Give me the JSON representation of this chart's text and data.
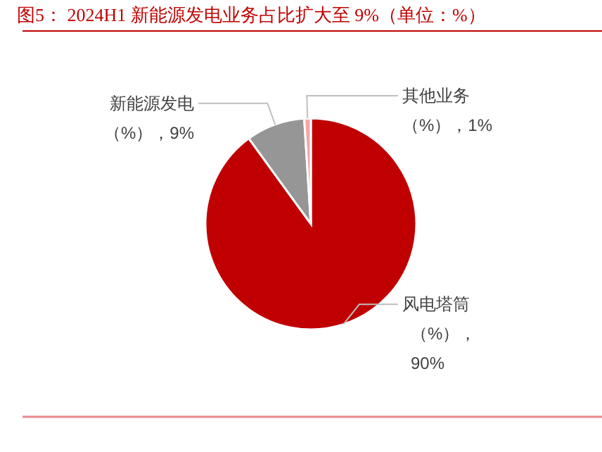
{
  "chart_data": {
    "type": "pie",
    "title": "图5：  2024H1 新能源发电业务占比扩大至 9%（单位：%）",
    "categories": [
      "风电塔筒",
      "新能源发电",
      "其他业务"
    ],
    "values": [
      90,
      9,
      1
    ],
    "value_labels": [
      "（%），90%",
      "（%），9%",
      "（%），1%"
    ],
    "colors": [
      "#c00000",
      "#969696",
      "#f4a6a6"
    ],
    "legend": false
  }
}
